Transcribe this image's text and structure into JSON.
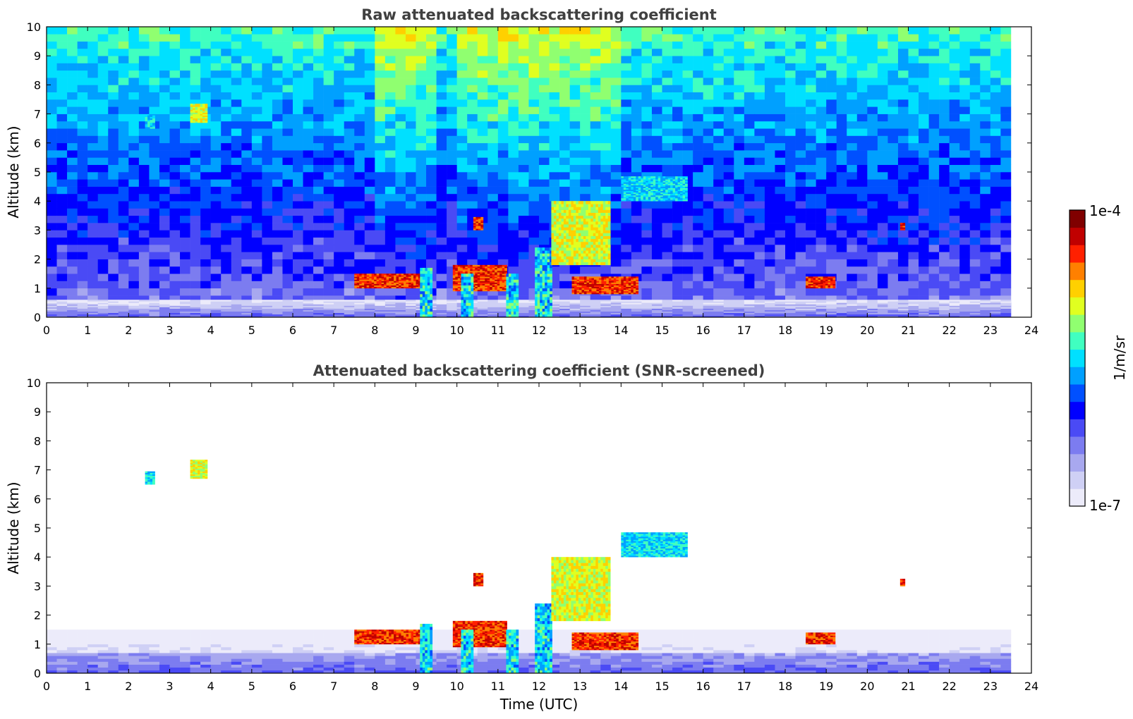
{
  "chart_data": [
    {
      "type": "heatmap",
      "title": "Raw attenuated backscattering coefficient",
      "xlabel": "",
      "ylabel": "Altitude (km)",
      "xlim": [
        0,
        24
      ],
      "ylim": [
        0,
        10
      ],
      "xticks": [
        0,
        1,
        2,
        3,
        4,
        5,
        6,
        7,
        8,
        9,
        10,
        11,
        12,
        13,
        14,
        15,
        16,
        17,
        18,
        19,
        20,
        21,
        22,
        23,
        24
      ],
      "yticks": [
        0,
        1,
        2,
        3,
        4,
        5,
        6,
        7,
        8,
        9,
        10
      ],
      "data_extent_x": [
        0,
        23.5
      ],
      "features": [
        {
          "kind": "boundary_layer",
          "x": [
            0,
            23.5
          ],
          "y": [
            0,
            0.6
          ],
          "level": "low"
        },
        {
          "kind": "cloud_layer",
          "x": [
            7.5,
            9.2
          ],
          "y": [
            1.0,
            1.5
          ],
          "level": "high"
        },
        {
          "kind": "cloud_layer",
          "x": [
            9.9,
            11.2
          ],
          "y": [
            0.9,
            1.8
          ],
          "level": "high"
        },
        {
          "kind": "precipitation",
          "x": [
            9.1,
            9.4
          ],
          "y": [
            0,
            1.7
          ],
          "level": "mid"
        },
        {
          "kind": "precipitation",
          "x": [
            10.1,
            10.4
          ],
          "y": [
            0,
            1.5
          ],
          "level": "mid"
        },
        {
          "kind": "precipitation",
          "x": [
            11.2,
            11.5
          ],
          "y": [
            0,
            1.5
          ],
          "level": "mid"
        },
        {
          "kind": "precipitation",
          "x": [
            11.9,
            12.3
          ],
          "y": [
            0,
            2.4
          ],
          "level": "mid"
        },
        {
          "kind": "elevated_layer",
          "x": [
            12.3,
            13.7
          ],
          "y": [
            1.8,
            4.0
          ],
          "level": "mid-high"
        },
        {
          "kind": "elevated_layer",
          "x": [
            14.0,
            15.6
          ],
          "y": [
            4.0,
            4.8
          ],
          "level": "mid"
        },
        {
          "kind": "cloud_layer",
          "x": [
            12.8,
            14.4
          ],
          "y": [
            0.8,
            1.4
          ],
          "level": "high"
        },
        {
          "kind": "cloud_layer",
          "x": [
            18.5,
            19.2
          ],
          "y": [
            1.0,
            1.4
          ],
          "level": "high"
        },
        {
          "kind": "cirrus",
          "x": [
            3.5,
            3.9
          ],
          "y": [
            6.7,
            7.3
          ],
          "level": "mid-high"
        },
        {
          "kind": "cirrus",
          "x": [
            2.4,
            2.6
          ],
          "y": [
            6.5,
            6.9
          ],
          "level": "mid"
        },
        {
          "kind": "small_cloud",
          "x": [
            10.4,
            10.6
          ],
          "y": [
            3.0,
            3.4
          ],
          "level": "high"
        },
        {
          "kind": "small_cloud",
          "x": [
            20.8,
            20.9
          ],
          "y": [
            3.0,
            3.2
          ],
          "level": "high"
        }
      ],
      "noise": true,
      "high_noise_windows": [
        [
          8.0,
          9.3
        ],
        [
          9.9,
          13.9
        ]
      ]
    },
    {
      "type": "heatmap",
      "title": "Attenuated backscattering coefficient (SNR-screened)",
      "xlabel": "Time (UTC)",
      "ylabel": "Altitude (km)",
      "xlim": [
        0,
        24
      ],
      "ylim": [
        0,
        10
      ],
      "xticks": [
        0,
        1,
        2,
        3,
        4,
        5,
        6,
        7,
        8,
        9,
        10,
        11,
        12,
        13,
        14,
        15,
        16,
        17,
        18,
        19,
        20,
        21,
        22,
        23,
        24
      ],
      "yticks": [
        0,
        1,
        2,
        3,
        4,
        5,
        6,
        7,
        8,
        9,
        10
      ],
      "data_extent_x": [
        0,
        23.5
      ],
      "features": [
        {
          "kind": "boundary_layer",
          "x": [
            0,
            23.5
          ],
          "y": [
            0,
            1.5
          ],
          "level": "low"
        },
        {
          "kind": "cloud_layer",
          "x": [
            7.5,
            9.2
          ],
          "y": [
            1.0,
            1.5
          ],
          "level": "high"
        },
        {
          "kind": "cloud_layer",
          "x": [
            9.9,
            11.2
          ],
          "y": [
            0.9,
            1.8
          ],
          "level": "high"
        },
        {
          "kind": "precipitation",
          "x": [
            9.1,
            9.4
          ],
          "y": [
            0,
            1.7
          ],
          "level": "mid"
        },
        {
          "kind": "precipitation",
          "x": [
            10.1,
            10.4
          ],
          "y": [
            0,
            1.5
          ],
          "level": "mid"
        },
        {
          "kind": "precipitation",
          "x": [
            11.2,
            11.5
          ],
          "y": [
            0,
            1.5
          ],
          "level": "mid"
        },
        {
          "kind": "precipitation",
          "x": [
            11.9,
            12.3
          ],
          "y": [
            0,
            2.4
          ],
          "level": "mid"
        },
        {
          "kind": "elevated_layer",
          "x": [
            12.3,
            13.7
          ],
          "y": [
            1.8,
            4.0
          ],
          "level": "mid-high"
        },
        {
          "kind": "elevated_layer",
          "x": [
            14.0,
            15.6
          ],
          "y": [
            4.0,
            4.8
          ],
          "level": "mid"
        },
        {
          "kind": "cloud_layer",
          "x": [
            12.8,
            14.4
          ],
          "y": [
            0.8,
            1.4
          ],
          "level": "high"
        },
        {
          "kind": "cloud_layer",
          "x": [
            18.5,
            19.2
          ],
          "y": [
            1.0,
            1.4
          ],
          "level": "high"
        },
        {
          "kind": "cirrus",
          "x": [
            3.5,
            3.9
          ],
          "y": [
            6.7,
            7.3
          ],
          "level": "mid-high"
        },
        {
          "kind": "cirrus",
          "x": [
            2.4,
            2.6
          ],
          "y": [
            6.5,
            6.9
          ],
          "level": "mid"
        },
        {
          "kind": "small_cloud",
          "x": [
            10.4,
            10.6
          ],
          "y": [
            3.0,
            3.4
          ],
          "level": "high"
        },
        {
          "kind": "small_cloud",
          "x": [
            20.8,
            20.9
          ],
          "y": [
            3.0,
            3.2
          ],
          "level": "high"
        }
      ],
      "noise": false
    }
  ],
  "colorbar": {
    "max_label": "1e-4",
    "min_label": "1e-7",
    "unit_label": "1/m/sr",
    "colormap": "jet-with-lavender-low-end",
    "colors": [
      "#ecebfa",
      "#cfd0f5",
      "#a8a8ef",
      "#7c7cf0",
      "#4a4af5",
      "#0000ff",
      "#0050ff",
      "#00a0ff",
      "#00e0ff",
      "#40ffc0",
      "#90ff70",
      "#e0ff20",
      "#ffd000",
      "#ff8000",
      "#ff2000",
      "#c00000",
      "#800000"
    ]
  }
}
